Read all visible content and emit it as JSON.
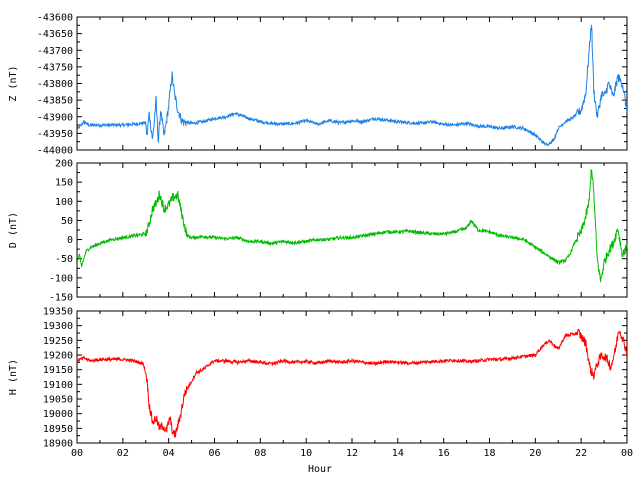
{
  "chart_data": [
    {
      "type": "line",
      "ylabel": "Z (nT)",
      "ylim": [
        -44000,
        -43600
      ],
      "yticks": [
        -43600,
        -43650,
        -43700,
        -43750,
        -43800,
        -43850,
        -43900,
        -43950,
        -44000
      ],
      "xlim": [
        0,
        24
      ],
      "color": "#1e82e6",
      "series": [
        {
          "x": [
            0,
            0.3,
            0.5,
            1,
            1.5,
            2,
            2.5,
            3,
            3.05,
            3.15,
            3.3,
            3.45,
            3.55,
            3.65,
            3.8,
            4,
            4.1,
            4.15,
            4.25,
            4.4,
            4.6,
            5,
            5.5,
            6,
            6.5,
            6.9,
            7.5,
            8,
            8.5,
            9,
            9.5,
            10,
            10.5,
            11,
            11.5,
            12,
            12.5,
            13,
            13.5,
            14,
            14.5,
            15,
            15.5,
            16,
            16.5,
            17,
            17.5,
            18,
            18.5,
            19,
            19.5,
            20,
            20.3,
            20.5,
            20.8,
            21,
            21.3,
            21.6,
            22,
            22.2,
            22.35,
            22.45,
            22.55,
            22.7,
            22.9,
            23,
            23.2,
            23.4,
            23.6,
            23.8,
            24
          ],
          "y": [
            -43940,
            -43915,
            -43925,
            -43925,
            -43925,
            -43925,
            -43922,
            -43918,
            -43960,
            -43890,
            -43970,
            -43850,
            -43975,
            -43880,
            -43960,
            -43870,
            -43800,
            -43775,
            -43830,
            -43880,
            -43915,
            -43920,
            -43915,
            -43905,
            -43900,
            -43890,
            -43905,
            -43915,
            -43920,
            -43922,
            -43920,
            -43912,
            -43922,
            -43912,
            -43918,
            -43912,
            -43915,
            -43905,
            -43910,
            -43915,
            -43918,
            -43920,
            -43915,
            -43923,
            -43925,
            -43920,
            -43928,
            -43930,
            -43935,
            -43930,
            -43935,
            -43955,
            -43975,
            -43985,
            -43970,
            -43935,
            -43915,
            -43905,
            -43880,
            -43830,
            -43700,
            -43615,
            -43820,
            -43900,
            -43830,
            -43840,
            -43800,
            -43840,
            -43780,
            -43800,
            -43885
          ]
        }
      ]
    },
    {
      "type": "line",
      "ylabel": "D (nT)",
      "ylim": [
        -150,
        200
      ],
      "yticks": [
        200,
        150,
        100,
        50,
        0,
        -50,
        -100,
        -150
      ],
      "xlim": [
        0,
        24
      ],
      "color": "#00bb00",
      "series": [
        {
          "x": [
            0,
            0.1,
            0.2,
            0.4,
            0.6,
            1,
            1.5,
            2,
            2.5,
            3,
            3.1,
            3.3,
            3.5,
            3.6,
            3.8,
            4,
            4.2,
            4.4,
            4.6,
            4.8,
            5,
            5.5,
            6,
            6.5,
            7,
            7.5,
            8,
            8.5,
            9,
            9.5,
            10,
            10.5,
            11,
            11.5,
            12,
            12.5,
            13,
            13.5,
            14,
            14.5,
            15,
            15.5,
            16,
            16.5,
            17,
            17.2,
            17.5,
            18,
            18.5,
            19,
            19.5,
            20,
            20.5,
            21,
            21.3,
            21.5,
            21.7,
            22,
            22.2,
            22.35,
            22.45,
            22.55,
            22.7,
            22.85,
            23,
            23.2,
            23.4,
            23.6,
            23.8,
            24
          ],
          "y": [
            -60,
            -40,
            -70,
            -30,
            -20,
            -10,
            0,
            5,
            10,
            15,
            30,
            80,
            100,
            120,
            80,
            90,
            110,
            115,
            60,
            10,
            5,
            8,
            5,
            2,
            5,
            -5,
            -5,
            -10,
            -5,
            -8,
            -5,
            0,
            0,
            5,
            5,
            10,
            15,
            20,
            20,
            22,
            18,
            15,
            15,
            20,
            30,
            50,
            25,
            20,
            10,
            5,
            0,
            -20,
            -40,
            -60,
            -55,
            -40,
            -10,
            20,
            60,
            100,
            190,
            120,
            -50,
            -110,
            -60,
            -30,
            -10,
            30,
            -40,
            -20
          ]
        }
      ]
    },
    {
      "type": "line",
      "ylabel": "H (nT)",
      "ylim": [
        18900,
        19350
      ],
      "yticks": [
        19350,
        19300,
        19250,
        19200,
        19150,
        19100,
        19050,
        19000,
        18950,
        18900
      ],
      "xlim": [
        0,
        24
      ],
      "color": "#ff0000",
      "xlabel": "Hour",
      "xticks": [
        "00",
        "02",
        "04",
        "06",
        "08",
        "10",
        "12",
        "14",
        "16",
        "18",
        "20",
        "22",
        "00"
      ],
      "series": [
        {
          "x": [
            0,
            0.3,
            0.6,
            1,
            1.5,
            2,
            2.5,
            2.9,
            3.05,
            3.15,
            3.3,
            3.45,
            3.6,
            3.75,
            3.9,
            4.05,
            4.2,
            4.3,
            4.5,
            4.7,
            5,
            5.2,
            5.5,
            5.8,
            6,
            6.5,
            7,
            7.5,
            8,
            8.5,
            9,
            9.5,
            10,
            10.5,
            11,
            11.5,
            12,
            12.5,
            13,
            13.5,
            14,
            14.5,
            15,
            15.5,
            16,
            16.5,
            17,
            17.5,
            18,
            18.5,
            19,
            19.5,
            20,
            20.3,
            20.6,
            21,
            21.3,
            21.6,
            21.9,
            22.2,
            22.4,
            22.55,
            22.7,
            22.9,
            23.1,
            23.3,
            23.5,
            23.65,
            23.8,
            24
          ],
          "y": [
            19180,
            19190,
            19180,
            19185,
            19185,
            19185,
            19180,
            19170,
            19120,
            19030,
            18970,
            18985,
            18950,
            18960,
            18940,
            18985,
            18930,
            18930,
            18990,
            19070,
            19110,
            19140,
            19150,
            19170,
            19180,
            19180,
            19175,
            19180,
            19175,
            19170,
            19180,
            19175,
            19178,
            19172,
            19180,
            19175,
            19180,
            19175,
            19170,
            19178,
            19175,
            19172,
            19175,
            19178,
            19180,
            19182,
            19178,
            19180,
            19185,
            19185,
            19190,
            19195,
            19200,
            19230,
            19250,
            19220,
            19265,
            19270,
            19275,
            19240,
            19150,
            19130,
            19170,
            19200,
            19190,
            19160,
            19220,
            19290,
            19260,
            19210
          ]
        }
      ]
    }
  ]
}
